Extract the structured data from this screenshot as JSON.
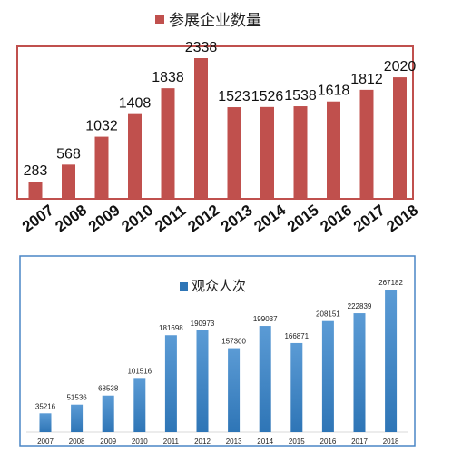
{
  "colors": {
    "chart1_bar": "#c0504d",
    "chart1_border": "#c0504d",
    "chart2_bar_top": "#5b9bd5",
    "chart2_bar_bottom": "#2e75b6",
    "chart2_border": "#4a86c5"
  },
  "chart_data": [
    {
      "type": "bar",
      "title": "",
      "legend": "参展企业数量",
      "categories": [
        "2007",
        "2008",
        "2009",
        "2010",
        "2011",
        "2012",
        "2013",
        "2014",
        "2015",
        "2016",
        "2017",
        "2018"
      ],
      "series": [
        {
          "name": "参展企业数量",
          "values": [
            283,
            568,
            1032,
            1408,
            1838,
            2338,
            1523,
            1526,
            1538,
            1618,
            1812,
            2020
          ]
        }
      ],
      "ylim": [
        0,
        2500
      ],
      "grid": false,
      "legend_position": "top"
    },
    {
      "type": "bar",
      "title": "",
      "legend": "观众人次",
      "categories": [
        "2007",
        "2008",
        "2009",
        "2010",
        "2011",
        "2012",
        "2013",
        "2014",
        "2015",
        "2016",
        "2017",
        "2018"
      ],
      "series": [
        {
          "name": "观众人次",
          "values": [
            35216,
            51536,
            68538,
            101516,
            181698,
            190973,
            157300,
            199037,
            166871,
            208151,
            222839,
            267182
          ]
        }
      ],
      "ylim": [
        0,
        300000
      ],
      "grid": false,
      "legend_position": "top"
    }
  ]
}
